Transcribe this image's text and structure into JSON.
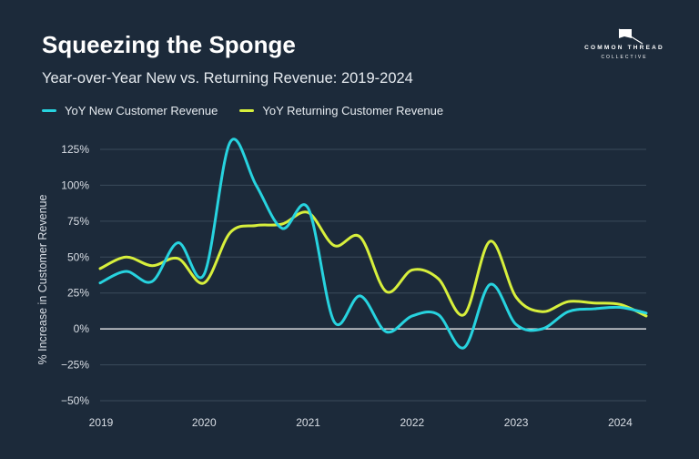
{
  "header": {
    "title": "Squeezing the Sponge",
    "subtitle": "Year-over-Year New vs. Returning Revenue: 2019-2024"
  },
  "logo": {
    "line1": "COMMON THREAD",
    "line2": "COLLECTIVE",
    "icon": "flag-icon"
  },
  "colors": {
    "background": "#1c2a3a",
    "new": "#27d3df",
    "returning": "#d7ef3c",
    "grid": "#3a4a5a",
    "zero": "#ffffff"
  },
  "chart_data": {
    "type": "line",
    "title": "Squeezing the Sponge",
    "subtitle": "Year-over-Year New vs. Returning Revenue: 2019-2024",
    "xlabel": "",
    "ylabel": "% Increase in Customer Revenue",
    "ylim": [
      -50,
      125
    ],
    "xlim": [
      2019,
      2024.25
    ],
    "yticks": [
      125,
      100,
      75,
      50,
      25,
      0,
      -25,
      -50
    ],
    "ytick_labels": [
      "125%",
      "100%",
      "75%",
      "50%",
      "25%",
      "0%",
      "−25%",
      "−50%"
    ],
    "xticks": [
      2019,
      2020,
      2021,
      2022,
      2023,
      2024
    ],
    "xtick_labels": [
      "2019",
      "2020",
      "2021",
      "2022",
      "2023",
      "2024"
    ],
    "grid": true,
    "legend": "top-left",
    "series": [
      {
        "name": "YoY New Customer Revenue",
        "color": "#27d3df",
        "x": [
          2019.0,
          2019.25,
          2019.5,
          2019.75,
          2020.0,
          2020.25,
          2020.5,
          2020.75,
          2021.0,
          2021.25,
          2021.5,
          2021.75,
          2022.0,
          2022.25,
          2022.5,
          2022.75,
          2023.0,
          2023.25,
          2023.5,
          2023.75,
          2024.0,
          2024.25
        ],
        "y": [
          32,
          40,
          33,
          60,
          38,
          130,
          100,
          70,
          84,
          5,
          23,
          -2,
          9,
          10,
          -13,
          31,
          3,
          0,
          12,
          14,
          15,
          11
        ]
      },
      {
        "name": "YoY Returning Customer Revenue",
        "color": "#d7ef3c",
        "x": [
          2019.0,
          2019.25,
          2019.5,
          2019.75,
          2020.0,
          2020.25,
          2020.5,
          2020.75,
          2021.0,
          2021.25,
          2021.5,
          2021.75,
          2022.0,
          2022.25,
          2022.5,
          2022.75,
          2023.0,
          2023.25,
          2023.5,
          2023.75,
          2024.0,
          2024.25
        ],
        "y": [
          42,
          50,
          44,
          49,
          32,
          67,
          72,
          73,
          81,
          58,
          64,
          26,
          41,
          35,
          10,
          61,
          22,
          12,
          19,
          18,
          17,
          9
        ]
      }
    ]
  }
}
